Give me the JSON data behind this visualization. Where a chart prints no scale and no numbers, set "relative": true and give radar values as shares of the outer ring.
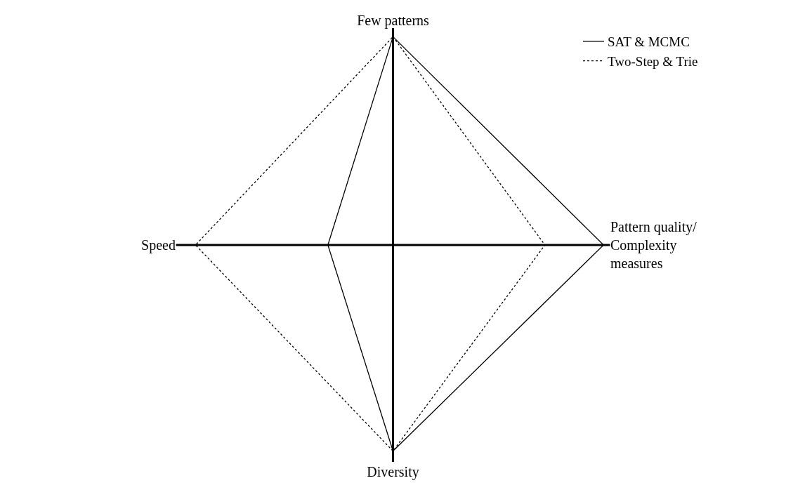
{
  "chart_data": {
    "type": "radar",
    "relative": true,
    "categories": [
      "Few patterns",
      "Pattern quality/\nComplexity\nmeasures",
      "Diversity",
      "Speed"
    ],
    "series": [
      {
        "name": "SAT & MCMC",
        "color": "#000000",
        "line_style": "solid",
        "values": [
          0.96,
          0.97,
          0.95,
          0.3
        ]
      },
      {
        "name": "Two-Step & Trie",
        "color": "#000000",
        "line_style": "dotted",
        "values": [
          0.96,
          0.7,
          0.95,
          0.91
        ]
      }
    ],
    "legend": "top right",
    "marker": "none"
  }
}
